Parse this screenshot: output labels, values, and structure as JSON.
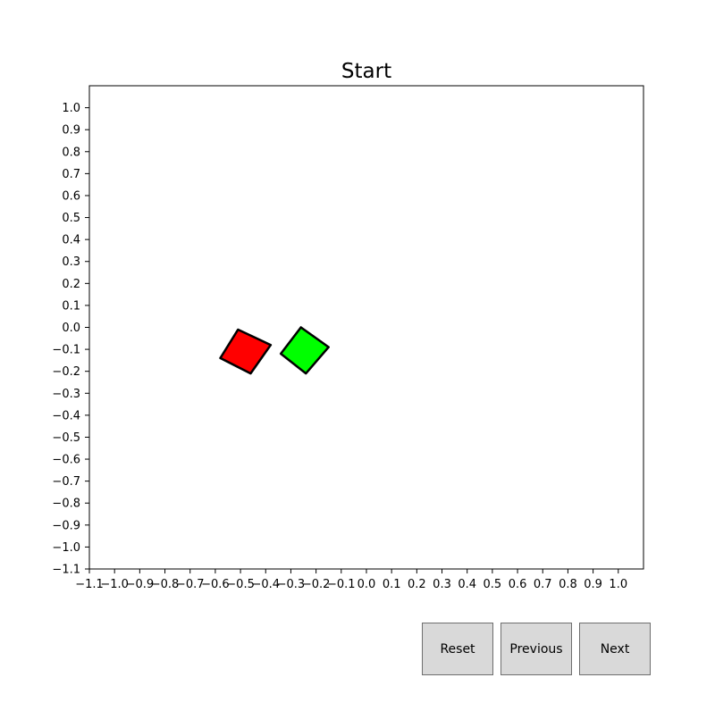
{
  "chart_data": {
    "type": "scatter",
    "title": "Start",
    "xlabel": "",
    "ylabel": "",
    "xlim": [
      -1.1,
      1.1
    ],
    "ylim": [
      -1.1,
      1.1
    ],
    "xticks": [
      "-1.1",
      "-1.0",
      "-0.9",
      "-0.8",
      "-0.7",
      "-0.6",
      "-0.5",
      "-0.4",
      "-0.3",
      "-0.2",
      "-0.1",
      "0.0",
      "0.1",
      "0.2",
      "0.3",
      "0.4",
      "0.5",
      "0.6",
      "0.7",
      "0.8",
      "0.9",
      "1.0"
    ],
    "yticks": [
      "-1.1",
      "-1.0",
      "-0.9",
      "-0.8",
      "-0.7",
      "-0.6",
      "-0.5",
      "-0.4",
      "-0.3",
      "-0.2",
      "-0.1",
      "0.0",
      "0.1",
      "0.2",
      "0.3",
      "0.4",
      "0.5",
      "0.6",
      "0.7",
      "0.8",
      "0.9",
      "1.0"
    ],
    "grid": false,
    "shapes": [
      {
        "kind": "square",
        "color": "#ff0000",
        "vertices": [
          [
            -0.51,
            -0.01
          ],
          [
            -0.38,
            -0.08
          ],
          [
            -0.46,
            -0.21
          ],
          [
            -0.58,
            -0.14
          ]
        ]
      },
      {
        "kind": "square",
        "color": "#00ff00",
        "vertices": [
          [
            -0.26,
            0.0
          ],
          [
            -0.15,
            -0.09
          ],
          [
            -0.24,
            -0.21
          ],
          [
            -0.34,
            -0.12
          ]
        ]
      }
    ]
  },
  "buttons": {
    "reset": "Reset",
    "previous": "Previous",
    "next": "Next"
  }
}
